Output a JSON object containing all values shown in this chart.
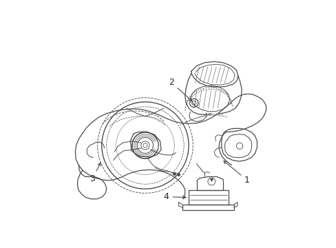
{
  "bg_color": "#ffffff",
  "line_color": "#4a4a4a",
  "lw_solid": 0.9,
  "lw_dash": 0.65,
  "fig_width": 4.89,
  "fig_height": 3.6,
  "dpi": 100
}
